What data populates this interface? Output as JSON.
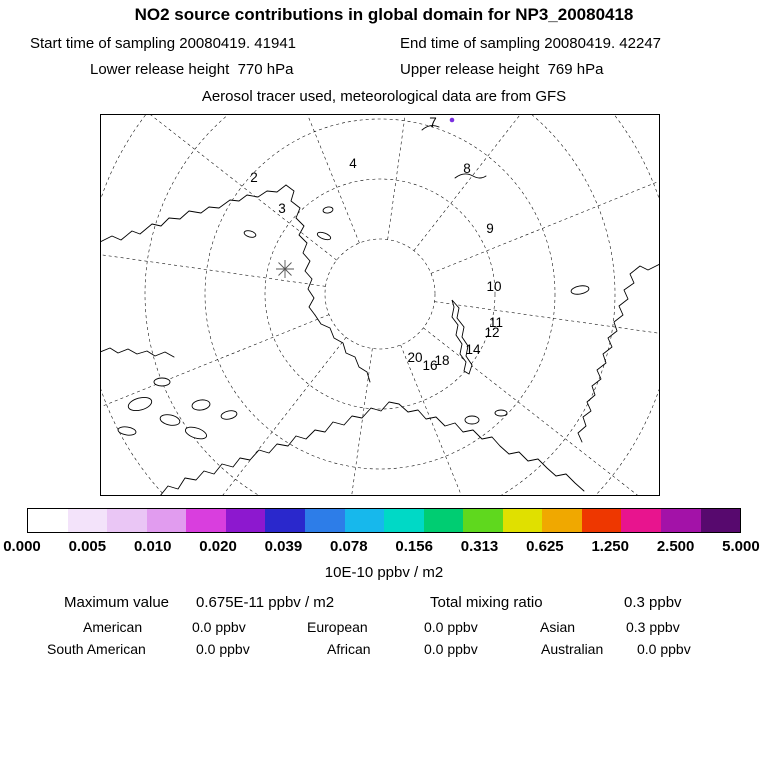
{
  "header": {
    "title": "NO2 source contributions in global domain for NP3_20080418",
    "start": "Start time of sampling 20080419. 41941",
    "end": "End time of sampling 20080419. 42247",
    "lower": "Lower release height  770 hPa",
    "upper": "Upper release height  769 hPa",
    "tracer": "Aerosol tracer used, meteorological data are from GFS"
  },
  "map": {
    "labels": [
      "2",
      "3",
      "4",
      "7",
      "8",
      "9",
      "10",
      "11",
      "12",
      "14",
      "16",
      "18",
      "20"
    ],
    "plume_color": "#7b2fe0"
  },
  "colorbar": {
    "colors": [
      "#ffffff",
      "#f3e3fa",
      "#eac6f5",
      "#e19cef",
      "#d93ede",
      "#8d18cf",
      "#2a28cc",
      "#2d7de8",
      "#17b8ec",
      "#00d9c6",
      "#00cd72",
      "#5fd81e",
      "#e0e000",
      "#f0a800",
      "#ee3700",
      "#e8148e",
      "#a312a8",
      "#57096e"
    ],
    "ticks": [
      "0.000",
      "0.005",
      "0.010",
      "0.020",
      "0.039",
      "0.078",
      "0.156",
      "0.313",
      "0.625",
      "1.250",
      "2.500",
      "5.000"
    ],
    "units": "10E-10 ppbv / m2"
  },
  "stats": {
    "max_label": "Maximum value",
    "max_value": "0.675E-11 ppbv / m2",
    "tmr_label": "Total mixing ratio",
    "tmr_value": "0.3 ppbv",
    "contributions": [
      {
        "region": "American",
        "value": "0.0 ppbv"
      },
      {
        "region": "European",
        "value": "0.0 ppbv"
      },
      {
        "region": "Asian",
        "value": "0.3 ppbv"
      },
      {
        "region": "South American",
        "value": "0.0 ppbv"
      },
      {
        "region": "African",
        "value": "0.0 ppbv"
      },
      {
        "region": "Australian",
        "value": "0.0 ppbv"
      }
    ]
  },
  "chart_data": {
    "type": "heatmap",
    "title": "NO2 source contributions in global domain for NP3_20080418",
    "colorbar_ticks": [
      0.0,
      0.005,
      0.01,
      0.02,
      0.039,
      0.078,
      0.156,
      0.313,
      0.625,
      1.25,
      2.5,
      5.0
    ],
    "colorbar_units": "10E-10 ppbv / m2",
    "maximum_value": "0.675E-11 ppbv / m2",
    "total_mixing_ratio_ppbv": 0.3,
    "source_contributions_ppbv": {
      "American": 0.0,
      "European": 0.0,
      "Asian": 0.3,
      "South American": 0.0,
      "African": 0.0,
      "Australian": 0.0
    }
  }
}
